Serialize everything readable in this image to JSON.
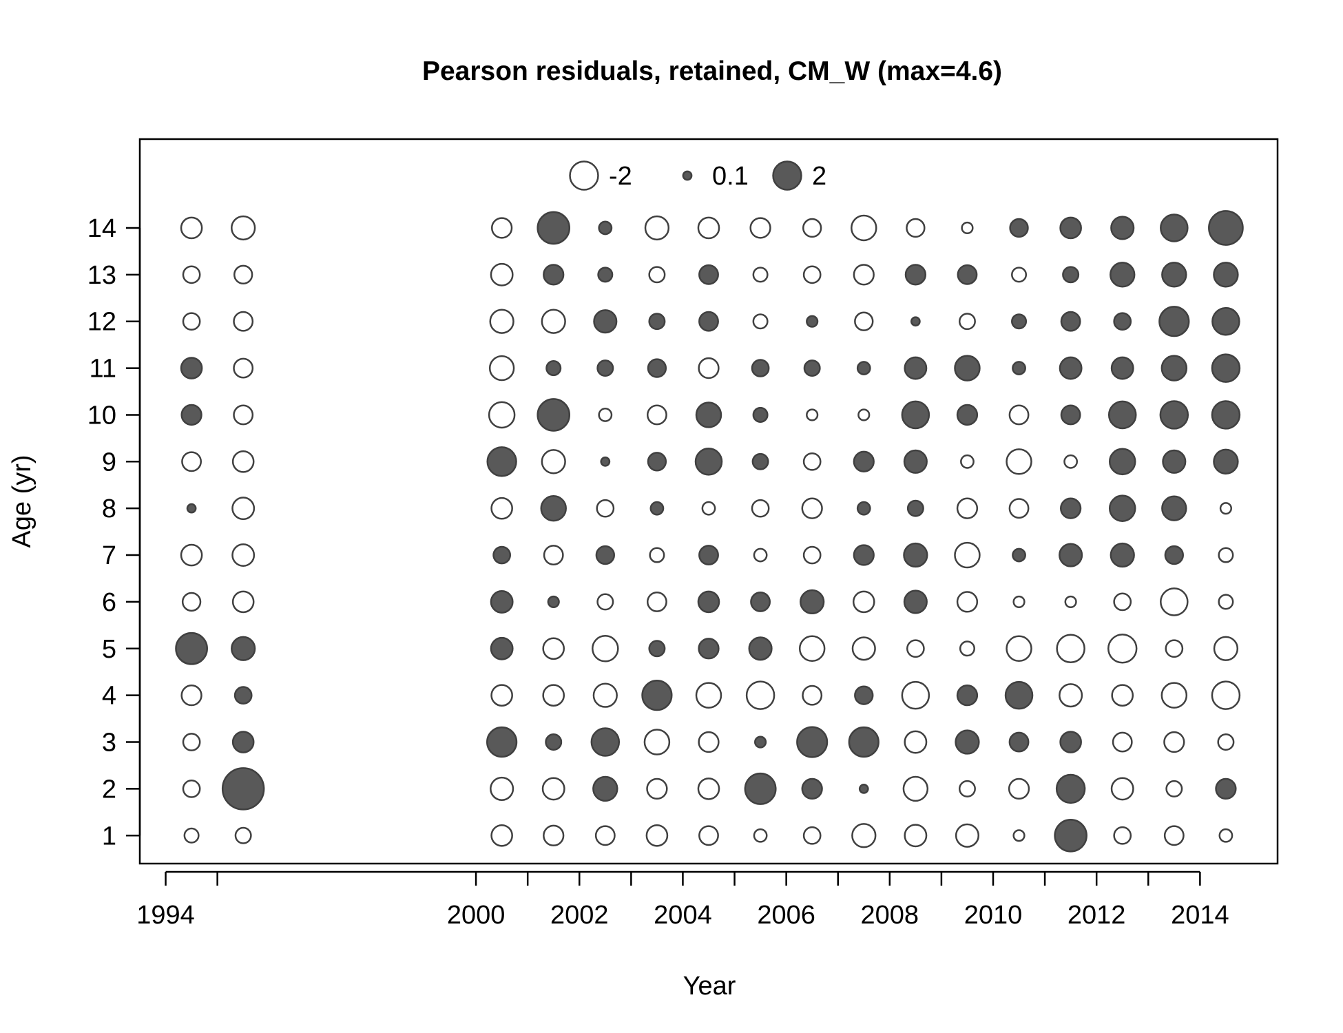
{
  "chart_data": {
    "type": "bubble",
    "title": "Pearson residuals, retained, CM_W (max=4.6)",
    "xlabel": "Year",
    "ylabel": "Age (yr)",
    "xlim": [
      1993.5,
      2015.5
    ],
    "ylim": [
      0.4,
      15.9
    ],
    "x_ticks": [
      1994,
      1995,
      2000,
      2001,
      2002,
      2003,
      2004,
      2005,
      2006,
      2007,
      2008,
      2009,
      2010,
      2011,
      2012,
      2013,
      2014
    ],
    "x_tick_labels": [
      "1994",
      "",
      "2000",
      "",
      "2002",
      "",
      "2004",
      "",
      "2006",
      "",
      "2008",
      "",
      "2010",
      "",
      "2012",
      "",
      "2014"
    ],
    "y_ticks": [
      1,
      2,
      3,
      4,
      5,
      6,
      7,
      8,
      9,
      10,
      11,
      12,
      13,
      14
    ],
    "y_tick_labels": [
      "1",
      "2",
      "3",
      "4",
      "5",
      "6",
      "7",
      "8",
      "9",
      "10",
      "11",
      "12",
      "13",
      "14"
    ],
    "max_abs_residual": 4.6,
    "legend": {
      "placement": "top-center",
      "entries": [
        {
          "label": "-2",
          "value": -2
        },
        {
          "label": "0.1",
          "value": 0.1
        },
        {
          "label": "2",
          "value": 2
        }
      ]
    },
    "colors": {
      "positive_fill": "#595959",
      "negative_fill": "#ffffff",
      "stroke": "#404040",
      "frame": "#000000"
    },
    "ages": [
      1,
      2,
      3,
      4,
      5,
      6,
      7,
      8,
      9,
      10,
      11,
      12,
      13,
      14
    ],
    "series": [
      {
        "year": 1994.5,
        "residuals": [
          -0.4,
          -0.6,
          -0.6,
          -0.9,
          2.5,
          -0.7,
          -1.0,
          0.1,
          -0.8,
          0.9,
          1.0,
          -0.6,
          -0.6,
          -1.0
        ]
      },
      {
        "year": 1995.5,
        "residuals": [
          -0.5,
          4.6,
          1.0,
          0.6,
          1.3,
          -1.0,
          -1.1,
          -1.1,
          -1.0,
          -0.8,
          -0.8,
          -0.8,
          -0.7,
          -1.3
        ]
      },
      {
        "year": 2000.5,
        "residuals": [
          -1.0,
          -1.2,
          2.2,
          -1.0,
          1.1,
          1.1,
          0.6,
          -1.0,
          2.1,
          -1.6,
          -1.4,
          -1.3,
          -1.1,
          -0.9
        ]
      },
      {
        "year": 2001.5,
        "residuals": [
          -0.9,
          -1.1,
          0.5,
          -1.0,
          -1.0,
          0.2,
          -0.8,
          1.5,
          -1.3,
          2.6,
          0.4,
          -1.3,
          0.9,
          2.6
        ]
      },
      {
        "year": 2002.5,
        "residuals": [
          -0.8,
          1.4,
          1.9,
          -1.3,
          -1.6,
          -0.5,
          0.7,
          -0.6,
          0.1,
          -0.3,
          0.5,
          1.2,
          0.4,
          0.3
        ]
      },
      {
        "year": 2003.5,
        "residuals": [
          -1.0,
          -0.9,
          -1.5,
          2.2,
          0.5,
          -0.8,
          -0.4,
          0.3,
          0.7,
          -0.8,
          0.7,
          0.5,
          -0.5,
          -1.3
        ]
      },
      {
        "year": 2004.5,
        "residuals": [
          -0.8,
          -1.0,
          -0.9,
          -1.5,
          0.9,
          1.0,
          0.8,
          -0.3,
          1.7,
          1.5,
          -0.9,
          0.8,
          0.8,
          -1.0
        ]
      },
      {
        "year": 2005.5,
        "residuals": [
          -0.3,
          2.4,
          0.2,
          -1.9,
          1.2,
          0.8,
          -0.3,
          -0.6,
          0.5,
          0.4,
          0.6,
          -0.4,
          -0.4,
          -0.9
        ]
      },
      {
        "year": 2006.5,
        "residuals": [
          -0.6,
          0.9,
          2.3,
          -0.8,
          -1.5,
          1.3,
          -0.6,
          -0.9,
          -0.6,
          -0.2,
          0.5,
          0.2,
          -0.6,
          -0.7
        ]
      },
      {
        "year": 2007.5,
        "residuals": [
          -1.3,
          0.1,
          2.2,
          0.7,
          -1.2,
          -1.0,
          0.9,
          0.3,
          0.9,
          -0.2,
          0.3,
          -0.7,
          -0.9,
          -1.5
        ]
      },
      {
        "year": 2008.5,
        "residuals": [
          -1.1,
          -1.4,
          -1.1,
          -1.8,
          -0.6,
          1.2,
          1.3,
          0.5,
          1.2,
          1.8,
          1.1,
          0.1,
          0.9,
          -0.7
        ]
      },
      {
        "year": 2009.5,
        "residuals": [
          -1.2,
          -0.5,
          1.3,
          0.9,
          -0.4,
          -0.9,
          -1.5,
          -0.9,
          -0.3,
          0.9,
          1.5,
          -0.5,
          0.8,
          -0.2
        ]
      },
      {
        "year": 2010.5,
        "residuals": [
          -0.2,
          -0.9,
          0.8,
          1.8,
          -1.5,
          -0.2,
          0.3,
          -0.8,
          -1.5,
          -0.8,
          0.3,
          0.4,
          -0.4,
          0.7
        ]
      },
      {
        "year": 2011.5,
        "residuals": [
          2.6,
          2.0,
          1.0,
          -1.2,
          -1.9,
          -0.2,
          1.2,
          0.9,
          -0.3,
          0.8,
          1.1,
          0.8,
          0.5,
          1.0
        ]
      },
      {
        "year": 2012.5,
        "residuals": [
          -0.6,
          -1.1,
          -0.8,
          -1.0,
          -2.0,
          -0.6,
          1.3,
          1.6,
          1.6,
          1.8,
          1.1,
          0.6,
          1.4,
          1.2
        ]
      },
      {
        "year": 2013.5,
        "residuals": [
          -0.8,
          -0.5,
          -0.9,
          -1.5,
          -0.6,
          -1.8,
          0.7,
          1.4,
          1.2,
          1.9,
          1.5,
          2.2,
          1.4,
          1.8
        ]
      },
      {
        "year": 2014.5,
        "residuals": [
          -0.3,
          0.9,
          -0.5,
          -1.9,
          -1.3,
          -0.4,
          -0.4,
          -0.2,
          1.4,
          1.9,
          1.9,
          1.8,
          1.4,
          3.0
        ]
      }
    ]
  }
}
